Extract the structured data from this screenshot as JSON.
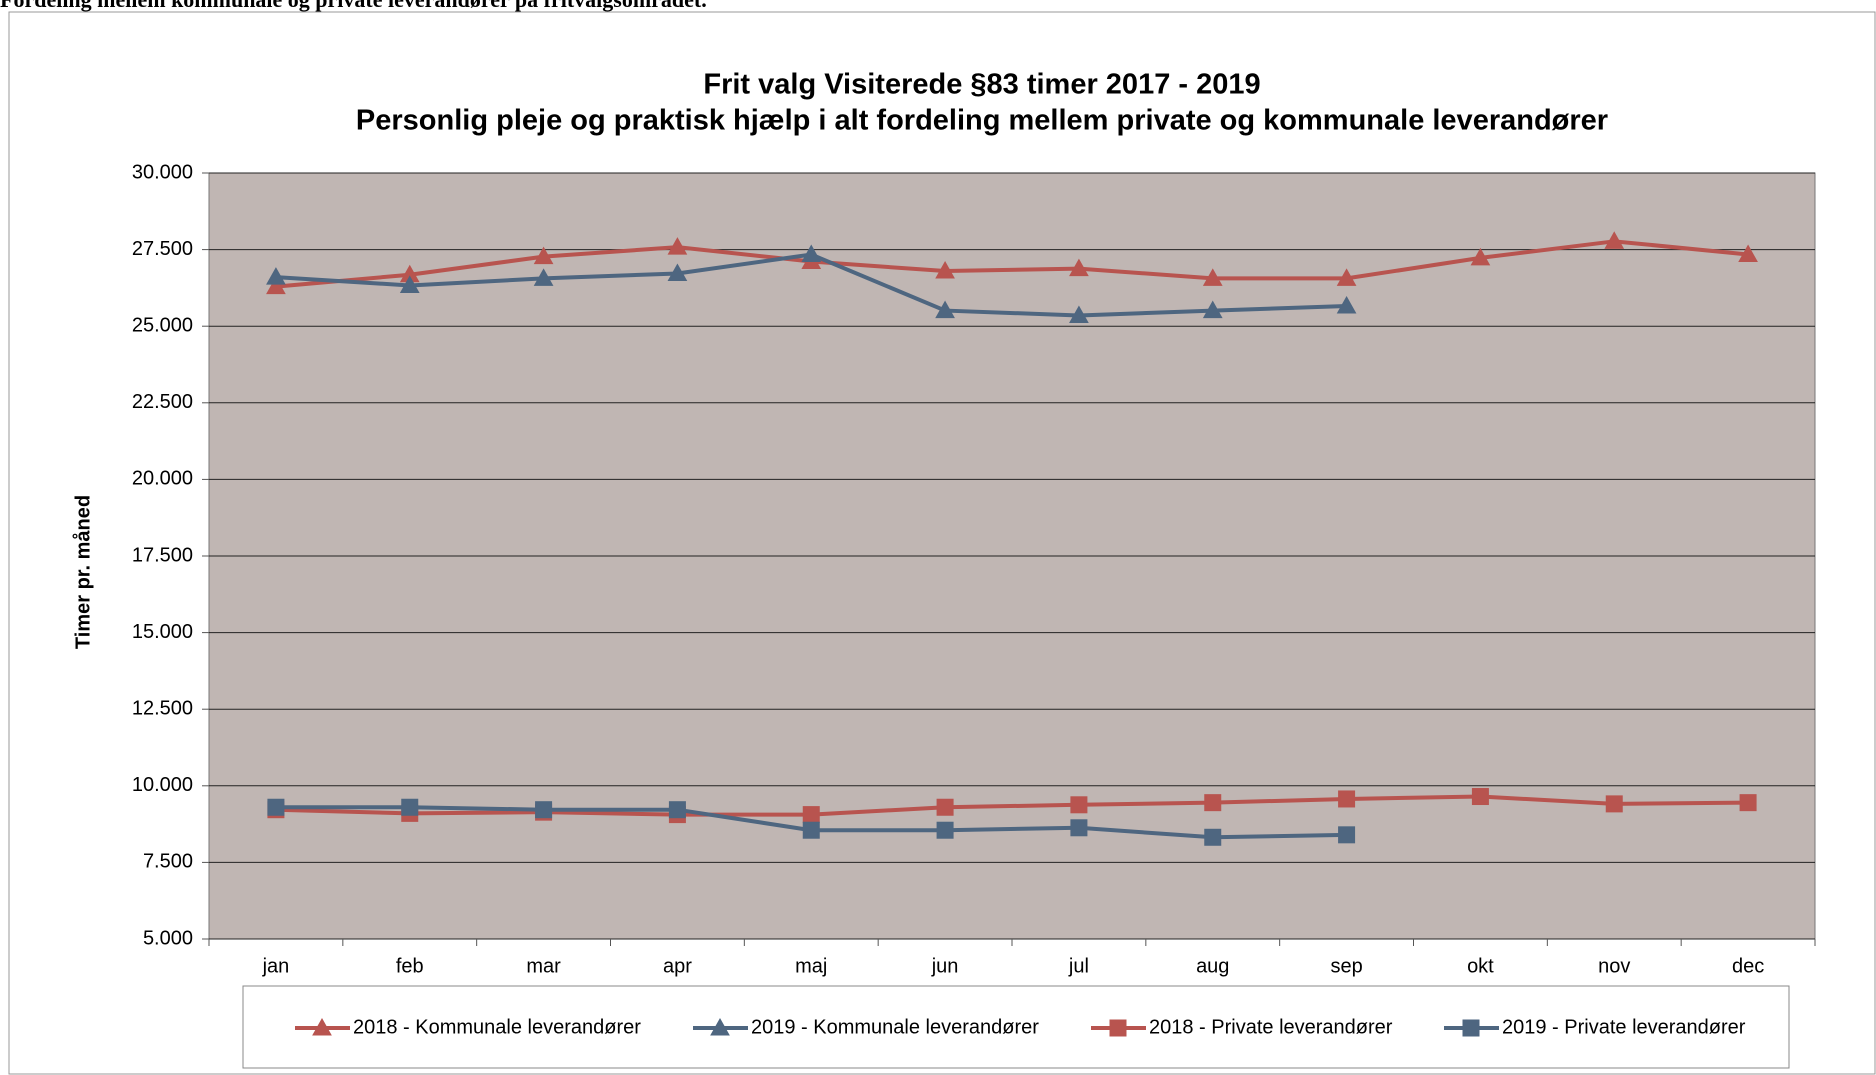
{
  "page_heading": "Fordeling mellem kommunale og private leverandører på fritvalgsområdet.",
  "chart_data": {
    "type": "line",
    "title": "Frit valg Visiterede §83 timer 2017 - 2019",
    "subtitle": "Personlig pleje og praktisk hjælp i alt fordeling mellem private og kommunale leverandører",
    "y_label": "Timer pr. måned",
    "categories": [
      "jan",
      "feb",
      "mar",
      "apr",
      "maj",
      "jun",
      "jul",
      "aug",
      "sep",
      "okt",
      "nov",
      "dec"
    ],
    "series": [
      {
        "name": "2018 - Kommunale leverandører",
        "color": "#b8544f",
        "marker": "triangle",
        "values": [
          26290,
          26680,
          27270,
          27580,
          27110,
          26800,
          26880,
          26560,
          26560,
          27230,
          27770,
          27340
        ]
      },
      {
        "name": "2019 - Kommunale leverandører",
        "color": "#4e6680",
        "marker": "triangle",
        "values": [
          26600,
          26330,
          26560,
          26720,
          27340,
          25510,
          25350,
          25510,
          25660,
          null,
          null,
          null
        ]
      },
      {
        "name": "2018 - Private leverandører",
        "color": "#b8544f",
        "marker": "square",
        "values": [
          9220,
          9100,
          9140,
          9060,
          9060,
          9300,
          9380,
          9450,
          9570,
          9650,
          9410,
          9450
        ]
      },
      {
        "name": "2019 - Private leverandører",
        "color": "#4e6680",
        "marker": "square",
        "values": [
          9300,
          9300,
          9220,
          9220,
          8550,
          8550,
          8630,
          8320,
          8400,
          null,
          null,
          null
        ]
      }
    ],
    "ylim": [
      5000,
      30000
    ],
    "yticks": [
      {
        "value": 5000,
        "label": "5.000"
      },
      {
        "value": 7500,
        "label": "7.500"
      },
      {
        "value": 10000,
        "label": "10.000"
      },
      {
        "value": 12500,
        "label": "12.500"
      },
      {
        "value": 15000,
        "label": "15.000"
      },
      {
        "value": 17500,
        "label": "17.500"
      },
      {
        "value": 20000,
        "label": "20.000"
      },
      {
        "value": 22500,
        "label": "22.500"
      },
      {
        "value": 25000,
        "label": "25.000"
      },
      {
        "value": 27500,
        "label": "27.500"
      },
      {
        "value": 30000,
        "label": "30.000"
      }
    ],
    "grid": true,
    "plot_background": "#c0b6b3",
    "legend": "bottom"
  }
}
